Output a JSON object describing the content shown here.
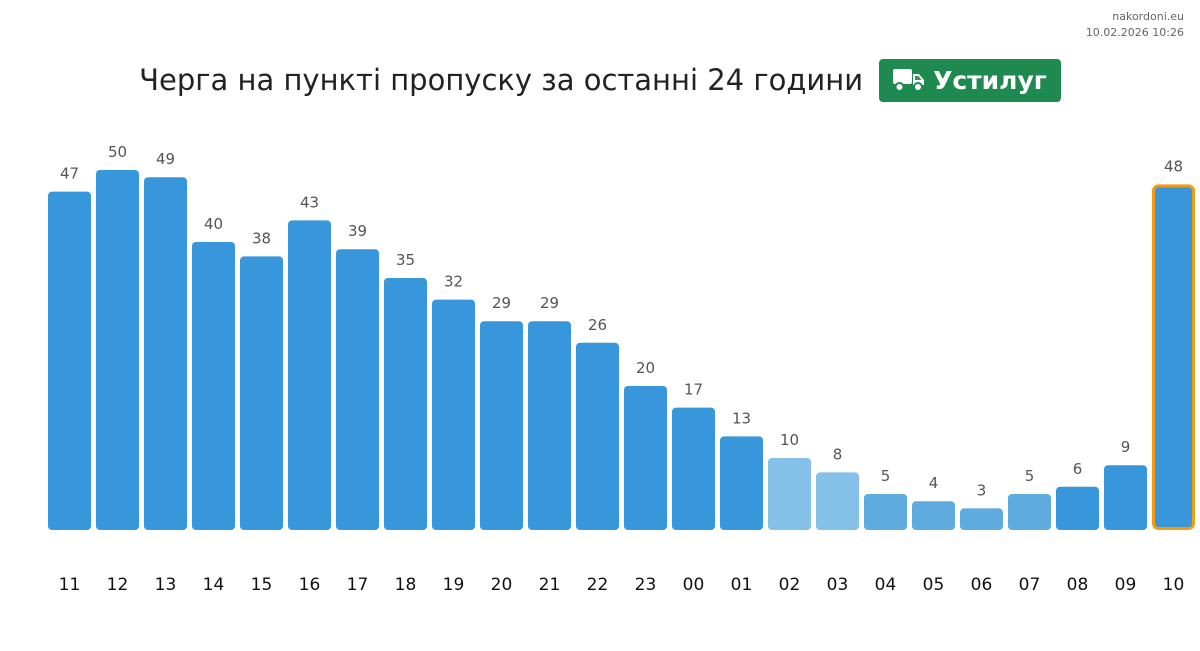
{
  "source": {
    "site": "nakordoni.eu",
    "timestamp": "10.02.2026 10:26"
  },
  "header": {
    "title": "Черга на пункті пропуску за останні 24 години",
    "badge_label": "Устилуг",
    "badge_icon": "truck-icon",
    "badge_color": "#1e8a4f"
  },
  "colors": {
    "bar": "#3797da",
    "bar_light": "#85c0e8",
    "bar_mid": "#5eacdf",
    "highlight_border": "#f39c12",
    "value_label": "#555555",
    "axis_label": "#111111"
  },
  "chart_data": {
    "type": "bar",
    "title": "Черга на пункті пропуску за останні 24 години",
    "categories": [
      "11",
      "12",
      "13",
      "14",
      "15",
      "16",
      "17",
      "18",
      "19",
      "20",
      "21",
      "22",
      "23",
      "00",
      "01",
      "02",
      "03",
      "04",
      "05",
      "06",
      "07",
      "08",
      "09",
      "10"
    ],
    "values": [
      47,
      50,
      49,
      40,
      38,
      43,
      39,
      35,
      32,
      29,
      29,
      26,
      20,
      17,
      13,
      10,
      8,
      5,
      4,
      3,
      5,
      6,
      9,
      48
    ],
    "bar_shades": [
      "dark",
      "dark",
      "dark",
      "dark",
      "dark",
      "dark",
      "dark",
      "dark",
      "dark",
      "dark",
      "dark",
      "dark",
      "dark",
      "dark",
      "dark",
      "light",
      "light",
      "mid",
      "mid",
      "mid",
      "mid",
      "dark",
      "dark",
      "dark"
    ],
    "highlighted_category": "10",
    "ylim": [
      0,
      50
    ],
    "xlabel": "",
    "ylabel": "",
    "grid": false,
    "legend": false
  }
}
